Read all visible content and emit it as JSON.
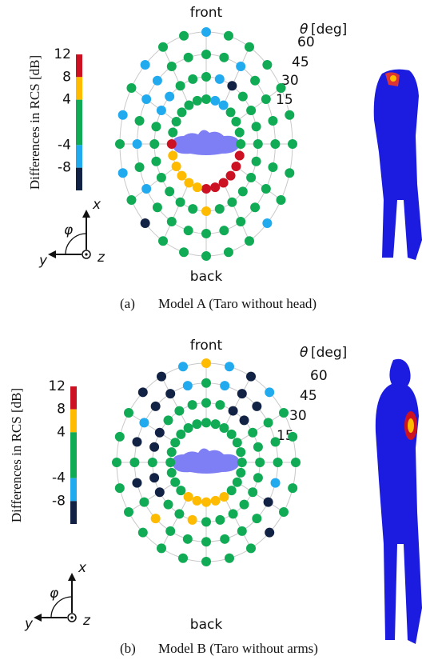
{
  "panels": [
    {
      "label": "(a)",
      "caption": "Model A (Taro without head)",
      "front": "front",
      "back": "back",
      "theta_symbol": "θ",
      "theta_unit": "[deg]",
      "colorbar": {
        "label": "Differences in RCS [dB]",
        "ticks": [
          12,
          8,
          4,
          -4,
          -8
        ],
        "lim": [
          -12,
          12
        ],
        "colors": [
          "#c12",
          "#fb0",
          "#1a5",
          "#2ae",
          "#124"
        ]
      },
      "axes": {
        "x": "x",
        "y": "y",
        "z": "z",
        "phi": "φ"
      },
      "rings": [
        {
          "theta": 15,
          "colors": [
            "#1a5",
            "#2ae",
            "#2ae",
            "#1a5",
            "#1a5",
            "#1a5",
            "#1a5",
            "#c12",
            "#c12",
            "#c12",
            "#c12",
            "#c12",
            "#c12",
            "#fb0",
            "#fb0",
            "#fb0",
            "#fb0",
            "#fb0",
            "#c12",
            "#1a5",
            "#1a5",
            "#1a5",
            "#1a5",
            "#1a5"
          ]
        },
        {
          "theta": 30,
          "colors": [
            "#1a5",
            "#2ae",
            "#124",
            "#1a5",
            "#1a5",
            "#1a5",
            "#1a5",
            "#1a5",
            "#1a5",
            "#1a5",
            "#1a5",
            "#1a5",
            "#fb0",
            "#1a5",
            "#1a5",
            "#1a5",
            "#1a5",
            "#1a5",
            "#1a5",
            "#1a5",
            "#2ae",
            "#2ae",
            "#1a5",
            "#1a5"
          ]
        },
        {
          "theta": 45,
          "colors": [
            "#1a5",
            "#1a5",
            "#2ae",
            "#1a5",
            "#1a5",
            "#1a5",
            "#1a5",
            "#1a5",
            "#1a5",
            "#1a5",
            "#1a5",
            "#1a5",
            "#1a5",
            "#1a5",
            "#1a5",
            "#1a5",
            "#2ae",
            "#1a5",
            "#2ae",
            "#1a5",
            "#2ae",
            "#2ae",
            "#1a5",
            "#1a5"
          ]
        },
        {
          "theta": 60,
          "colors": [
            "#2ae",
            "#1a5",
            "#1a5",
            "#1a5",
            "#1a5",
            "#1a5",
            "#1a5",
            "#1a5",
            "#1a5",
            "#2ae",
            "#1a5",
            "#1a5",
            "#1a5",
            "#1a5",
            "#1a5",
            "#124",
            "#1a5",
            "#2ae",
            "#1a5",
            "#2ae",
            "#1a5",
            "#2ae",
            "#1a5",
            "#1a5"
          ]
        }
      ]
    },
    {
      "label": "(b)",
      "caption": "Model B (Taro without arms)",
      "front": "front",
      "back": "back",
      "theta_symbol": "θ",
      "theta_unit": "[deg]",
      "colorbar": {
        "label": "Differences in RCS [dB]",
        "ticks": [
          12,
          8,
          4,
          -4,
          -8
        ],
        "lim": [
          -12,
          12
        ],
        "colors": [
          "#c12",
          "#fb0",
          "#1a5",
          "#2ae",
          "#124"
        ]
      },
      "axes": {
        "x": "x",
        "y": "y",
        "z": "z",
        "phi": "φ"
      },
      "rings": [
        {
          "theta": 15,
          "colors": [
            "#1a5",
            "#1a5",
            "#1a5",
            "#1a5",
            "#1a5",
            "#1a5",
            "#1a5",
            "#1a5",
            "#1a5",
            "#1a5",
            "#fb0",
            "#fb0",
            "#fb0",
            "#fb0",
            "#fb0",
            "#1a5",
            "#1a5",
            "#1a5",
            "#1a5",
            "#1a5",
            "#1a5",
            "#1a5",
            "#1a5",
            "#1a5"
          ]
        },
        {
          "theta": 30,
          "colors": [
            "#1a5",
            "#1a5",
            "#124",
            "#124",
            "#1a5",
            "#1a5",
            "#1a5",
            "#1a5",
            "#1a5",
            "#1a5",
            "#1a5",
            "#1a5",
            "#1a5",
            "#fb0",
            "#1a5",
            "#1a5",
            "#124",
            "#124",
            "#1a5",
            "#124",
            "#124",
            "#1a5",
            "#1a5",
            "#1a5"
          ]
        },
        {
          "theta": 45,
          "colors": [
            "#1a5",
            "#2ae",
            "#124",
            "#124",
            "#1a5",
            "#1a5",
            "#1a5",
            "#2ae",
            "#124",
            "#1a5",
            "#1a5",
            "#1a5",
            "#1a5",
            "#1a5",
            "#1a5",
            "#fb0",
            "#1a5",
            "#124",
            "#1a5",
            "#124",
            "#2ae",
            "#124",
            "#124",
            "#2ae"
          ]
        },
        {
          "theta": 60,
          "colors": [
            "#fb0",
            "#2ae",
            "#124",
            "#2ae",
            "#1a5",
            "#1a5",
            "#1a5",
            "#1a5",
            "#1a5",
            "#124",
            "#1a5",
            "#1a5",
            "#1a5",
            "#1a5",
            "#1a5",
            "#1a5",
            "#1a5",
            "#1a5",
            "#1a5",
            "#1a5",
            "#1a5",
            "#124",
            "#124",
            "#2ae"
          ]
        }
      ]
    }
  ]
}
